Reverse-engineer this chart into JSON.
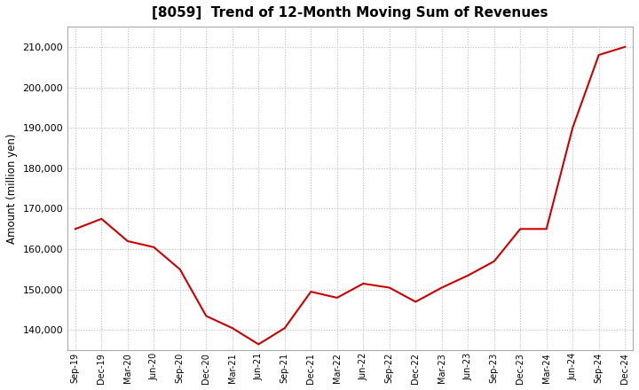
{
  "title": "[8059]  Trend of 12-Month Moving Sum of Revenues",
  "ylabel": "Amount (million yen)",
  "line_color": "#cc0000",
  "background_color": "#ffffff",
  "plot_bg_color": "#ffffff",
  "grid_color": "#bbbbbb",
  "ylim": [
    135000,
    215000
  ],
  "yticks": [
    140000,
    150000,
    160000,
    170000,
    180000,
    190000,
    200000,
    210000
  ],
  "x_labels": [
    "Sep-19",
    "Dec-19",
    "Mar-20",
    "Jun-20",
    "Sep-20",
    "Dec-20",
    "Mar-21",
    "Jun-21",
    "Sep-21",
    "Dec-21",
    "Mar-22",
    "Jun-22",
    "Sep-22",
    "Dec-22",
    "Mar-23",
    "Jun-23",
    "Sep-23",
    "Dec-23",
    "Mar-24",
    "Jun-24",
    "Sep-24",
    "Dec-24"
  ],
  "values": [
    165000,
    167500,
    162000,
    160500,
    155000,
    143500,
    140500,
    136500,
    140500,
    149500,
    148000,
    151500,
    150500,
    147000,
    150500,
    153500,
    157000,
    165000,
    165000,
    190000,
    208000,
    210000
  ]
}
